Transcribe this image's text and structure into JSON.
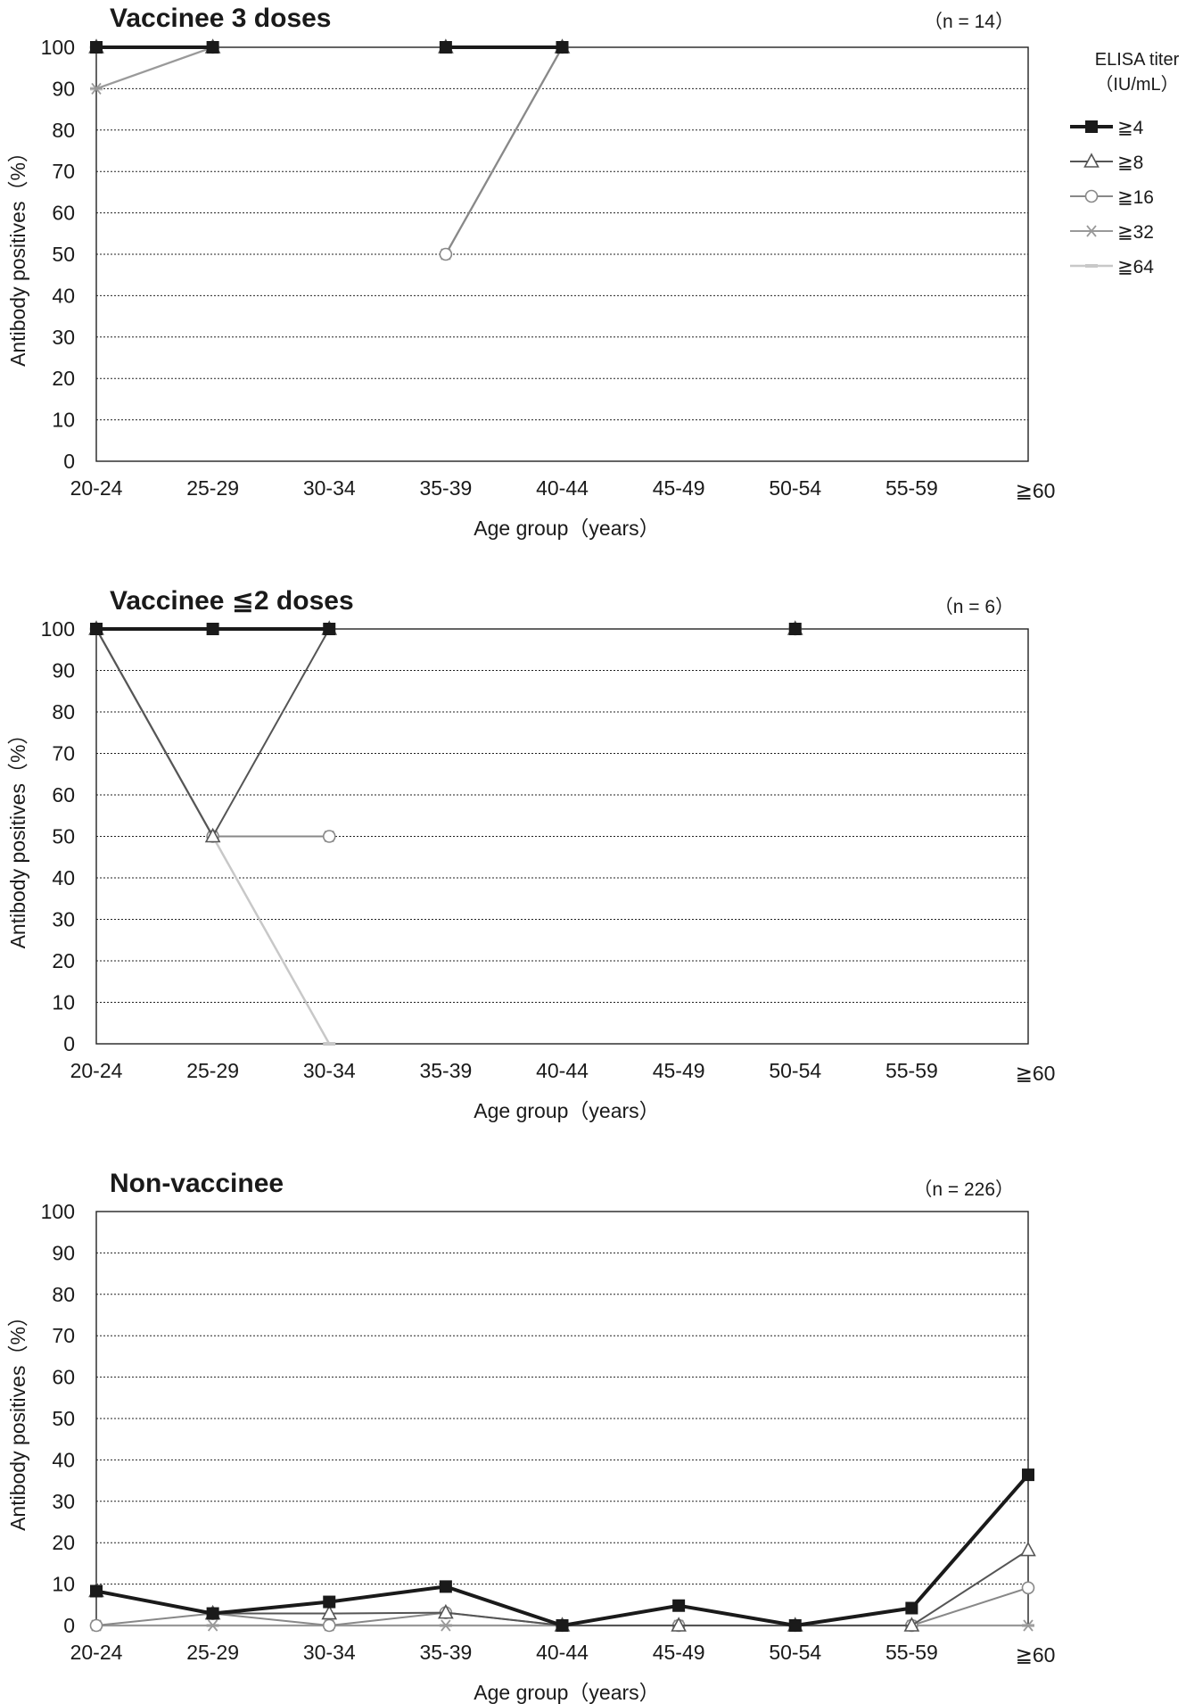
{
  "legend": {
    "title_line1": "ELISA titer",
    "title_line2": "（IU/mL）"
  },
  "chart_data": [
    {
      "type": "line",
      "title": "Vaccinee 3 doses",
      "n_label": "（n = 14）",
      "xlabel": "Age group（years）",
      "ylabel": "Antibody positives（%）",
      "categories": [
        "20-24",
        "25-29",
        "30-34",
        "35-39",
        "40-44",
        "45-49",
        "50-54",
        "55-59",
        "≧60"
      ],
      "ylim": [
        0,
        100
      ],
      "yticks": [
        0,
        10,
        20,
        30,
        40,
        50,
        60,
        70,
        80,
        90,
        100
      ],
      "grid": true,
      "legend_position": "right",
      "series": [
        {
          "name": "≧4",
          "values": [
            100,
            100,
            null,
            100,
            100,
            null,
            null,
            null,
            null
          ]
        },
        {
          "name": "≧8",
          "values": [
            100,
            100,
            null,
            100,
            100,
            null,
            null,
            null,
            null
          ]
        },
        {
          "name": "≧16",
          "values": [
            100,
            100,
            null,
            50,
            100,
            null,
            null,
            null,
            null
          ]
        },
        {
          "name": "≧32",
          "values": [
            90,
            100,
            null,
            50,
            100,
            null,
            null,
            null,
            null
          ]
        },
        {
          "name": "≧64",
          "values": [
            90,
            100,
            null,
            50,
            100,
            null,
            null,
            null,
            null
          ]
        }
      ]
    },
    {
      "type": "line",
      "title": "Vaccinee ≦2 doses",
      "n_label": "（n = 6）",
      "xlabel": "Age group（years）",
      "ylabel": "Antibody positives（%）",
      "categories": [
        "20-24",
        "25-29",
        "30-34",
        "35-39",
        "40-44",
        "45-49",
        "50-54",
        "55-59",
        "≧60"
      ],
      "ylim": [
        0,
        100
      ],
      "yticks": [
        0,
        10,
        20,
        30,
        40,
        50,
        60,
        70,
        80,
        90,
        100
      ],
      "grid": true,
      "series": [
        {
          "name": "≧4",
          "values": [
            100,
            100,
            100,
            null,
            null,
            null,
            100,
            null,
            null
          ]
        },
        {
          "name": "≧8",
          "values": [
            100,
            50,
            100,
            null,
            null,
            null,
            100,
            null,
            null
          ]
        },
        {
          "name": "≧16",
          "values": [
            100,
            50,
            50,
            null,
            null,
            null,
            100,
            null,
            null
          ]
        },
        {
          "name": "≧32",
          "values": [
            100,
            50,
            50,
            null,
            null,
            null,
            100,
            null,
            null
          ]
        },
        {
          "name": "≧64",
          "values": [
            100,
            50,
            0,
            null,
            null,
            null,
            100,
            null,
            null
          ]
        }
      ]
    },
    {
      "type": "line",
      "title": "Non-vaccinee",
      "n_label": "（n = 226）",
      "xlabel": "Age group（years）",
      "ylabel": "Antibody positives（%）",
      "categories": [
        "20-24",
        "25-29",
        "30-34",
        "35-39",
        "40-44",
        "45-49",
        "50-54",
        "55-59",
        "≧60"
      ],
      "ylim": [
        0,
        100
      ],
      "yticks": [
        0,
        10,
        20,
        30,
        40,
        50,
        60,
        70,
        80,
        90,
        100
      ],
      "grid": true,
      "series": [
        {
          "name": "≧4",
          "values": [
            8.3,
            2.9,
            5.7,
            9.4,
            0,
            4.8,
            0,
            4.2,
            36.4
          ]
        },
        {
          "name": "≧8",
          "values": [
            8.3,
            2.9,
            2.9,
            3.1,
            0,
            0,
            0,
            0,
            18.2
          ]
        },
        {
          "name": "≧16",
          "values": [
            0,
            2.9,
            0,
            3.1,
            0,
            0,
            0,
            0,
            9.1
          ]
        },
        {
          "name": "≧32",
          "values": [
            0,
            0,
            0,
            0,
            0,
            0,
            0,
            0,
            0
          ]
        },
        {
          "name": "≧64",
          "values": [
            0,
            0,
            0,
            0,
            0,
            0,
            0,
            0,
            0
          ]
        }
      ]
    }
  ],
  "series_styles": [
    {
      "name": "≧4",
      "color": "#1a1a1a",
      "width": 4,
      "marker": "square-filled"
    },
    {
      "name": "≧8",
      "color": "#555555",
      "width": 2,
      "marker": "triangle-open"
    },
    {
      "name": "≧16",
      "color": "#888888",
      "width": 2,
      "marker": "circle-open"
    },
    {
      "name": "≧32",
      "color": "#999999",
      "width": 2,
      "marker": "asterisk"
    },
    {
      "name": "≧64",
      "color": "#c8c8c8",
      "width": 2.5,
      "marker": "dash"
    }
  ]
}
